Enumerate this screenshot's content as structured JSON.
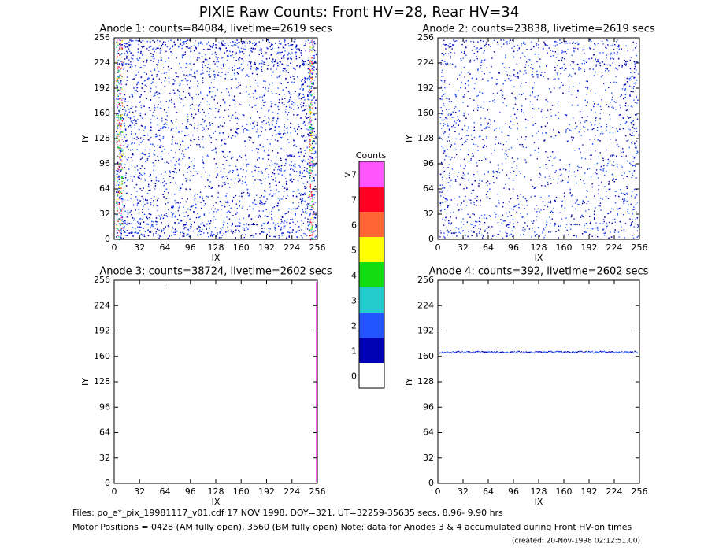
{
  "title": "PIXIE Raw Counts:  Front HV=28, Rear HV=34",
  "panels": [
    {
      "type": "heatmap",
      "title": "Anode 1: counts=84084, livetime=2619 secs",
      "x_label": "IX",
      "y_label": "IY",
      "xlim": [
        0,
        256
      ],
      "ylim": [
        0,
        256
      ],
      "xticks": [
        0,
        32,
        64,
        96,
        128,
        160,
        192,
        224,
        256
      ],
      "yticks": [
        0,
        32,
        64,
        96,
        128,
        160,
        192,
        224,
        256
      ]
    },
    {
      "type": "heatmap",
      "title": "Anode 2: counts=23838, livetime=2619 secs",
      "x_label": "IX",
      "y_label": "IY",
      "xlim": [
        0,
        256
      ],
      "ylim": [
        0,
        256
      ],
      "xticks": [
        0,
        32,
        64,
        96,
        128,
        160,
        192,
        224,
        256
      ],
      "yticks": [
        0,
        32,
        64,
        96,
        128,
        160,
        192,
        224,
        256
      ]
    },
    {
      "type": "heatmap",
      "title": "Anode 3: counts=38724, livetime=2602 secs",
      "x_label": "IX",
      "y_label": "IY",
      "xlim": [
        0,
        256
      ],
      "ylim": [
        0,
        256
      ],
      "xticks": [
        0,
        32,
        64,
        96,
        128,
        160,
        192,
        224,
        256
      ],
      "yticks": [
        0,
        32,
        64,
        96,
        128,
        160,
        192,
        224,
        256
      ]
    },
    {
      "type": "heatmap",
      "title": "Anode 4: counts=392, livetime=2602 secs",
      "x_label": "IX",
      "y_label": "IY",
      "xlim": [
        0,
        256
      ],
      "ylim": [
        0,
        256
      ],
      "xticks": [
        0,
        32,
        64,
        96,
        128,
        160,
        192,
        224,
        256
      ],
      "yticks": [
        0,
        32,
        64,
        96,
        128,
        160,
        192,
        224,
        256
      ]
    }
  ],
  "colorbar": {
    "title": "Counts",
    "levels": [
      {
        "label": "0",
        "color": "#ffffff"
      },
      {
        "label": "1",
        "color": "#0000b4"
      },
      {
        "label": "2",
        "color": "#2255ff"
      },
      {
        "label": "3",
        "color": "#22cccc"
      },
      {
        "label": "4",
        "color": "#11dd11"
      },
      {
        "label": "5",
        "color": "#ffff00"
      },
      {
        "label": "6",
        "color": "#ff6633"
      },
      {
        "label": "7",
        "color": "#ff0022"
      },
      {
        "label": ">7",
        "color": "#ff55ff"
      }
    ]
  },
  "footer": [
    "Files: po_e*_pix_19981117_v01.cdf    17 NOV 1998, DOY=321, UT=32259-35635 secs,  8.96- 9.90 hrs",
    "Motor Positions = 0428 (AM fully open), 3560 (BM fully open)    Note: data for Anodes 3 & 4 accumulated during Front HV-on times",
    "(created: 20-Nov-1998 02:12:51.00)"
  ]
}
